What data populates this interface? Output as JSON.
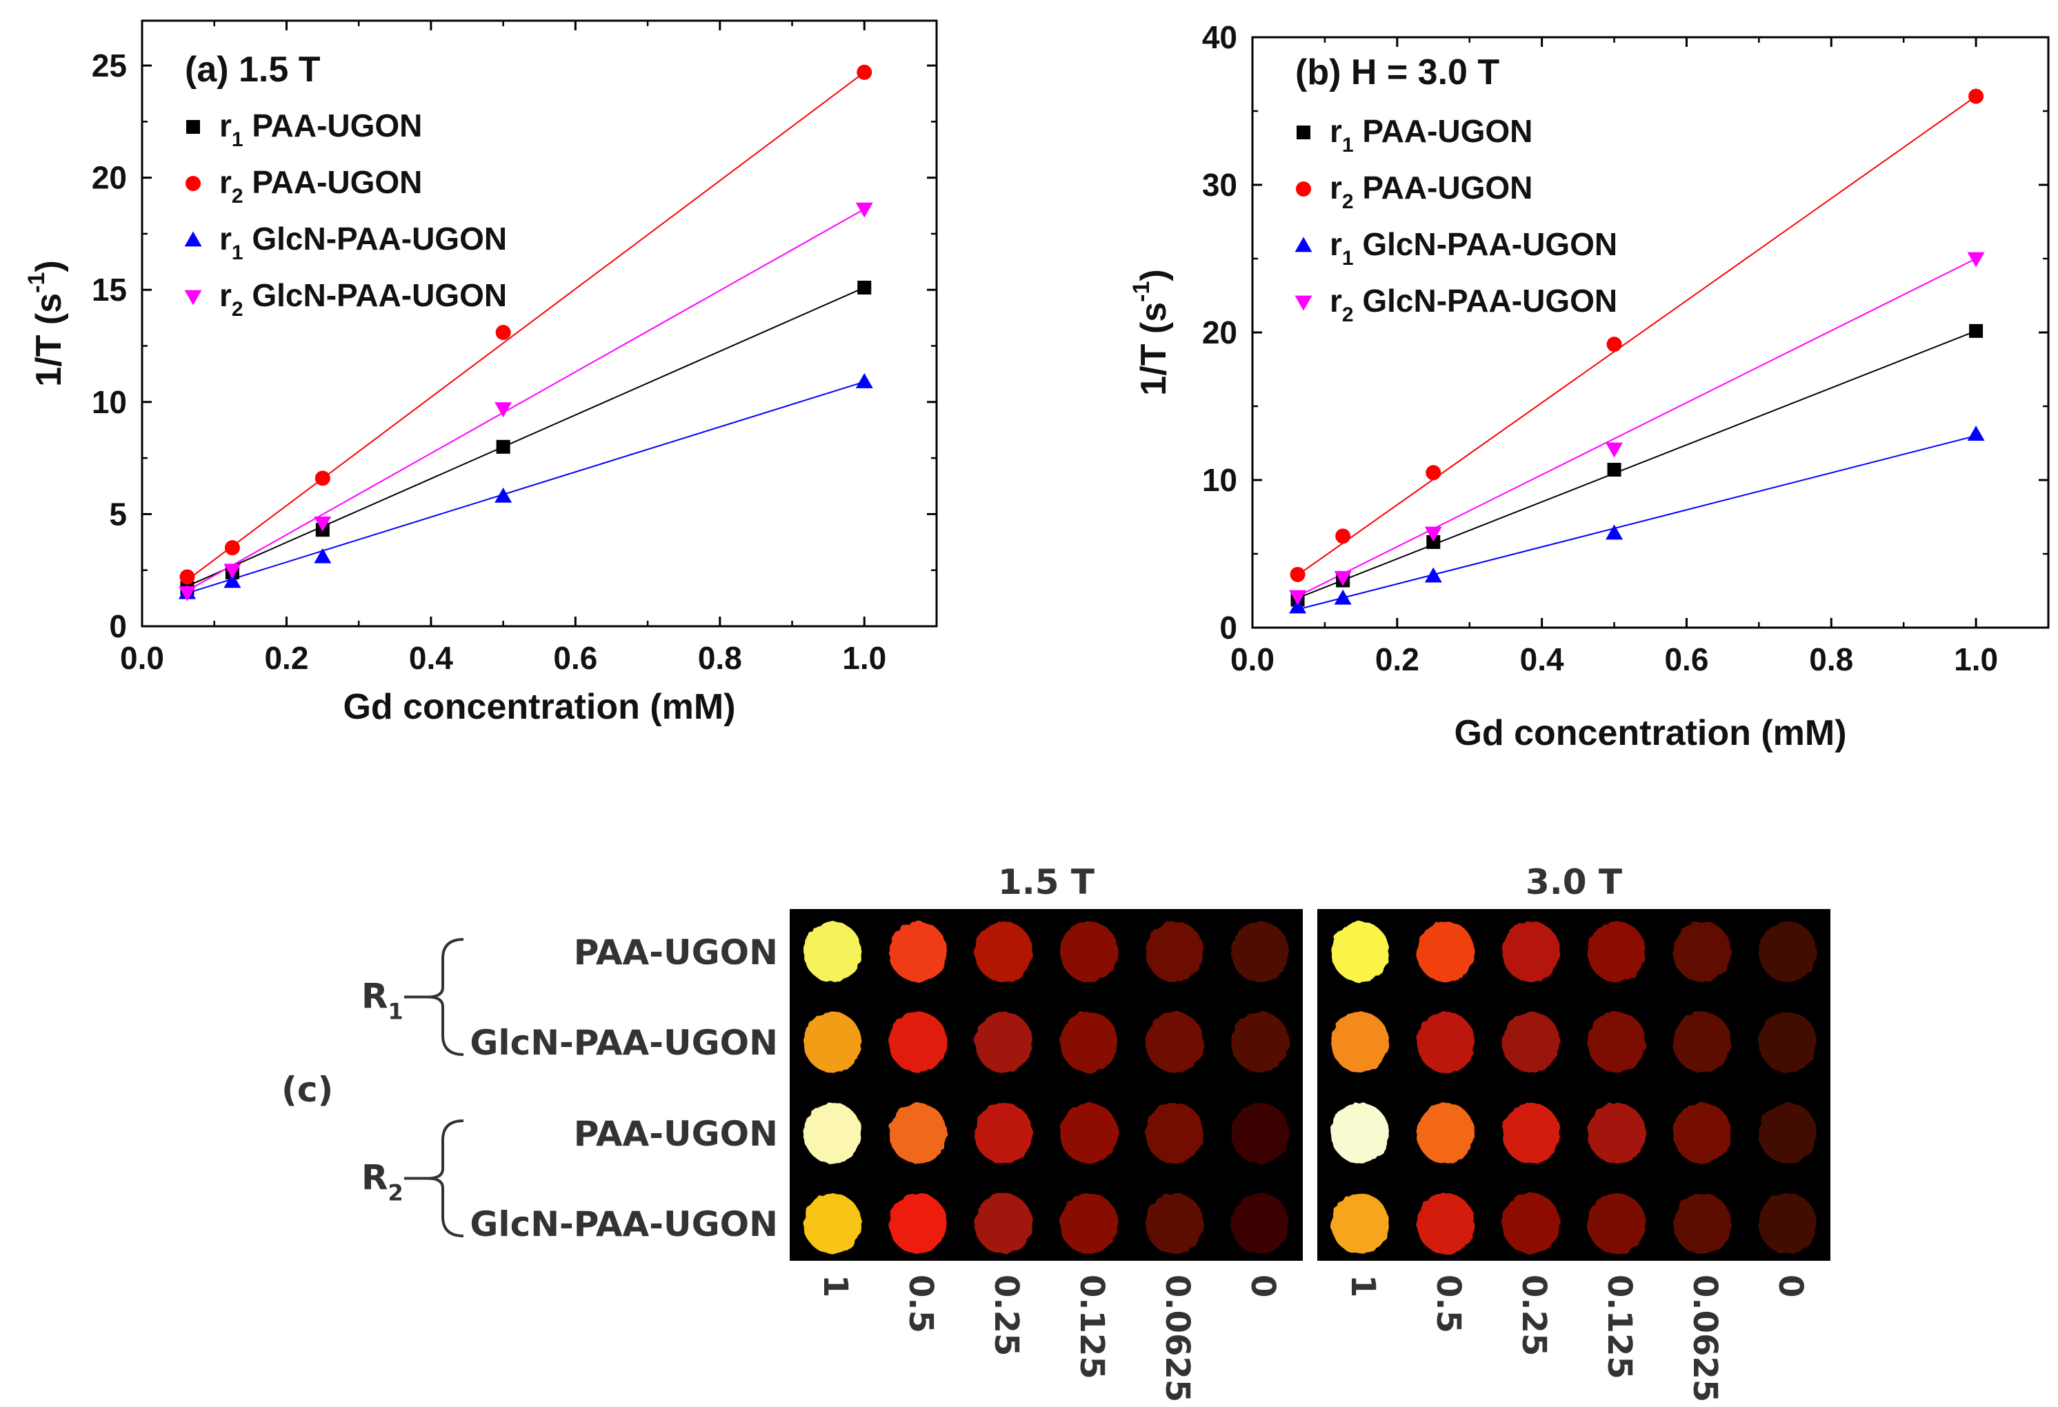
{
  "chart_data": [
    {
      "type": "scatter",
      "panel_label": "(a) 1.5 T",
      "xlabel": "Gd concentration (mM)",
      "ylabel": {
        "main": "1/T (s",
        "exp": "-1",
        "close": ")"
      },
      "xlim": [
        0.0,
        1.1
      ],
      "ylim": [
        0,
        27
      ],
      "xticks": [
        "0.0",
        "0.2",
        "0.4",
        "0.6",
        "0.8",
        "1.0"
      ],
      "xtick_values": [
        0.0,
        0.2,
        0.4,
        0.6,
        0.8,
        1.0
      ],
      "yticks": [
        "0",
        "5",
        "10",
        "15",
        "20",
        "25"
      ],
      "ytick_values": [
        0,
        5,
        10,
        15,
        20,
        25
      ],
      "fit_lines": true,
      "legend_position": "top-left",
      "x": [
        0.0625,
        0.125,
        0.25,
        0.5,
        1.0
      ],
      "series": [
        {
          "prefix": "r",
          "sub": "1",
          "label": "PAA-UGON",
          "color": "#000000",
          "marker": "square",
          "values": [
            1.7,
            2.4,
            4.3,
            8.0,
            15.1
          ],
          "fit": [
            0.9,
            14.2
          ]
        },
        {
          "prefix": "r",
          "sub": "2",
          "label": "PAA-UGON",
          "color": "#ff0000",
          "marker": "circle",
          "values": [
            2.2,
            3.5,
            6.6,
            13.1,
            24.7
          ],
          "fit": [
            0.55,
            24.15
          ]
        },
        {
          "prefix": "r",
          "sub": "1",
          "label": "GlcN-PAA-UGON",
          "color": "#0000ff",
          "marker": "triangle-up",
          "values": [
            1.5,
            2.0,
            3.1,
            5.8,
            10.9
          ],
          "fit": [
            0.85,
            10.05
          ]
        },
        {
          "prefix": "r",
          "sub": "2",
          "label": "GlcN-PAA-UGON",
          "color": "#ff00ff",
          "marker": "triangle-down",
          "values": [
            1.5,
            2.5,
            4.6,
            9.7,
            18.6
          ],
          "fit": [
            0.45,
            18.15
          ]
        }
      ]
    },
    {
      "type": "scatter",
      "panel_label": "(b) H = 3.0 T",
      "xlabel": "Gd concentration (mM)",
      "ylabel": {
        "main": "1/T (s",
        "exp": "-1",
        "close": ")"
      },
      "xlim": [
        0.0,
        1.1
      ],
      "ylim": [
        0,
        40
      ],
      "xticks": [
        "0.0",
        "0.2",
        "0.4",
        "0.6",
        "0.8",
        "1.0"
      ],
      "xtick_values": [
        0.0,
        0.2,
        0.4,
        0.6,
        0.8,
        1.0
      ],
      "yticks": [
        "0",
        "10",
        "20",
        "30",
        "40"
      ],
      "ytick_values": [
        0,
        10,
        20,
        30,
        40
      ],
      "fit_lines": true,
      "legend_position": "top-left",
      "x": [
        0.0625,
        0.125,
        0.25,
        0.5,
        1.0
      ],
      "series": [
        {
          "prefix": "r",
          "sub": "1",
          "label": "PAA-UGON",
          "color": "#000000",
          "marker": "square",
          "values": [
            1.9,
            3.2,
            5.8,
            10.7,
            20.1
          ],
          "fit": [
            0.8,
            19.3
          ]
        },
        {
          "prefix": "r",
          "sub": "2",
          "label": "PAA-UGON",
          "color": "#ff0000",
          "marker": "circle",
          "values": [
            3.6,
            6.2,
            10.5,
            19.2,
            36.0
          ],
          "fit": [
            1.4,
            34.6
          ]
        },
        {
          "prefix": "r",
          "sub": "1",
          "label": "GlcN-PAA-UGON",
          "color": "#0000ff",
          "marker": "triangle-up",
          "values": [
            1.4,
            2.0,
            3.5,
            6.4,
            13.1
          ],
          "fit": [
            0.45,
            12.55
          ]
        },
        {
          "prefix": "r",
          "sub": "2",
          "label": "GlcN-PAA-UGON",
          "color": "#ff00ff",
          "marker": "triangle-down",
          "values": [
            2.1,
            3.4,
            6.4,
            12.1,
            25.0
          ],
          "fit": [
            0.6,
            24.4
          ]
        }
      ]
    },
    {
      "type": "heatmap",
      "panel_label": "(c)",
      "field_labels": [
        "1.5 T",
        "3.0 T"
      ],
      "group_labels": [
        {
          "main": "R",
          "sub": "1"
        },
        {
          "main": "R",
          "sub": "2"
        }
      ],
      "row_labels": [
        "PAA-UGON",
        "GlcN-PAA-UGON",
        "PAA-UGON",
        "GlcN-PAA-UGON"
      ],
      "column_labels": [
        "1",
        "0.5",
        "0.25",
        "0.125",
        "0.0625",
        "0"
      ],
      "intensity_colors": {
        "1.5 T": [
          [
            "#f6f25a",
            "#ef3a12",
            "#b01406",
            "#860f06",
            "#6c0c05",
            "#4e0803"
          ],
          [
            "#f39d12",
            "#e01b0c",
            "#a11307",
            "#860f06",
            "#6e0c05",
            "#540903"
          ],
          [
            "#fbf6b0",
            "#f0681e",
            "#bd1608",
            "#8e1006",
            "#720d05",
            "#3a0502"
          ],
          [
            "#f8c515",
            "#ee1c0e",
            "#a11307",
            "#860f06",
            "#5c0a04",
            "#3b0502"
          ]
        ],
        "3.0 T": [
          [
            "#faf44a",
            "#f0400f",
            "#b41407",
            "#8c1006",
            "#600a04",
            "#420703"
          ],
          [
            "#f48a1c",
            "#bd1408",
            "#9a1207",
            "#7d0e05",
            "#5c0a04",
            "#420703"
          ],
          [
            "#fafad0",
            "#f26718",
            "#d41a0a",
            "#a41307",
            "#740d05",
            "#420703"
          ],
          [
            "#f7a51a",
            "#d41c0b",
            "#8c1006",
            "#7a0e05",
            "#5c0a04",
            "#420703"
          ]
        ]
      }
    }
  ]
}
